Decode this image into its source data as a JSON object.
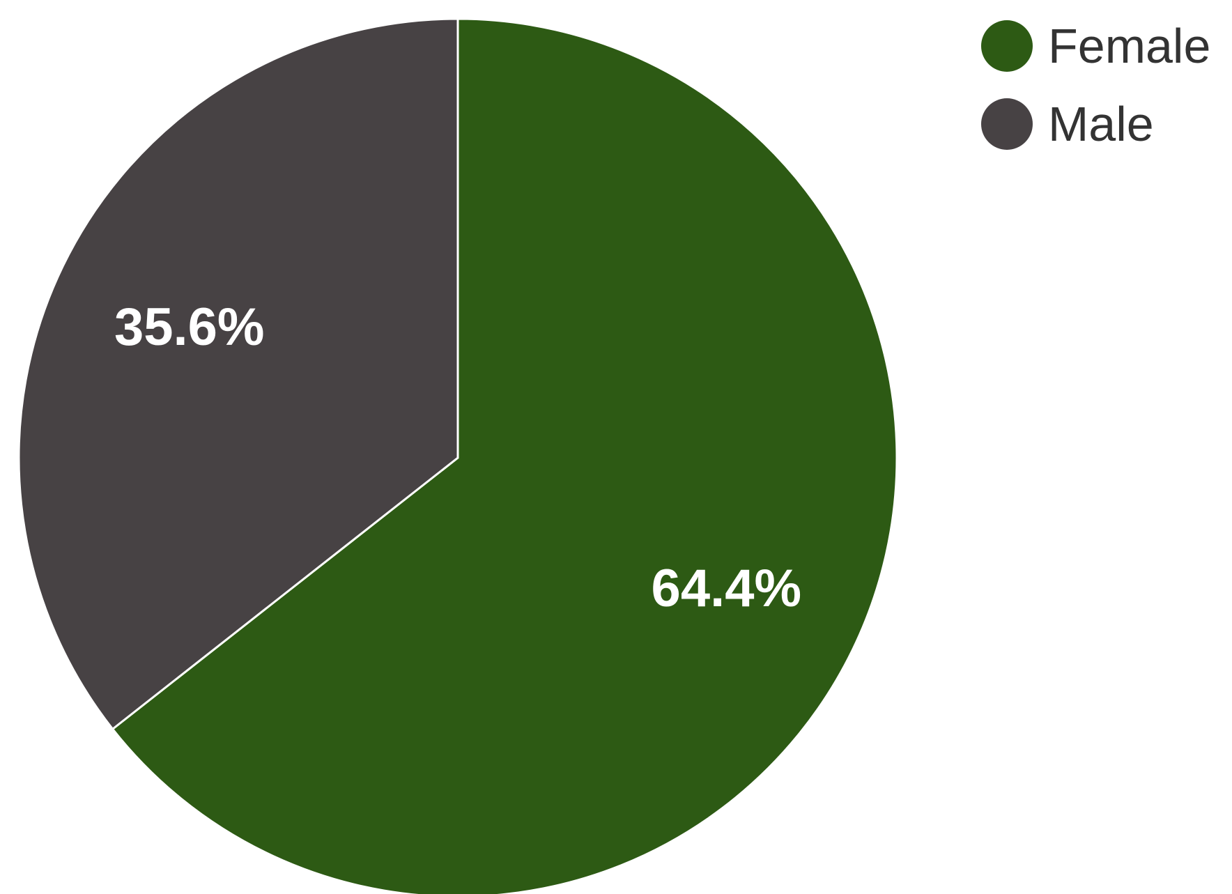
{
  "chart_data": {
    "type": "pie",
    "categories": [
      "Female",
      "Male"
    ],
    "values": [
      64.4,
      35.6
    ],
    "value_labels": [
      "64.4%",
      "35.6%"
    ],
    "colors": [
      "#2d5a14",
      "#474244"
    ],
    "slice_border_color": "#ffffff",
    "legend": {
      "placement": "top-right",
      "items": [
        {
          "label": "Female",
          "color": "#2d5a14"
        },
        {
          "label": "Male",
          "color": "#474244"
        }
      ]
    }
  }
}
